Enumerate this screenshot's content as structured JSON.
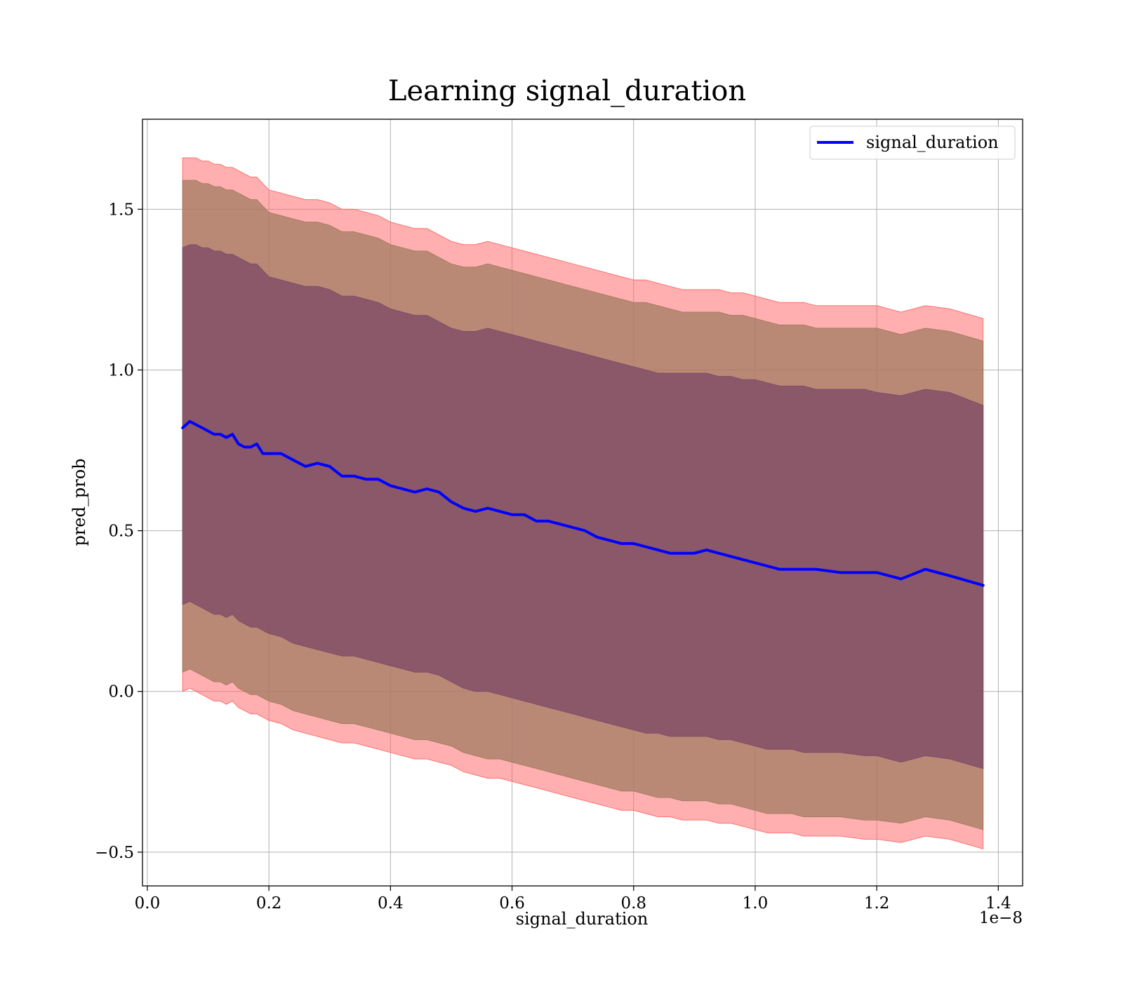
{
  "chart_data": {
    "type": "line",
    "title": "Learning signal_duration",
    "xlabel": "signal_duration",
    "ylabel": "pred_prob",
    "x_offset_label": "1e−8",
    "xlim": [
      -0.008,
      1.44
    ],
    "ylim": [
      -0.605,
      1.78
    ],
    "x_ticks": [
      0.0,
      0.2,
      0.4,
      0.6,
      0.8,
      1.0,
      1.2,
      1.4
    ],
    "x_tick_labels": [
      "0.0",
      "0.2",
      "0.4",
      "0.6",
      "0.8",
      "1.0",
      "1.2",
      "1.4"
    ],
    "y_ticks": [
      -0.5,
      0.0,
      0.5,
      1.0,
      1.5
    ],
    "y_tick_labels": [
      "−0.5",
      "0.0",
      "0.5",
      "1.0",
      "1.5"
    ],
    "grid": true,
    "legend_position": "top-right",
    "series": [
      {
        "name": "signal_duration",
        "color": "#0000ff",
        "x": [
          0.058,
          0.07,
          0.08,
          0.09,
          0.1,
          0.11,
          0.12,
          0.13,
          0.14,
          0.15,
          0.16,
          0.17,
          0.18,
          0.19,
          0.2,
          0.22,
          0.24,
          0.26,
          0.28,
          0.3,
          0.32,
          0.34,
          0.36,
          0.38,
          0.4,
          0.42,
          0.44,
          0.46,
          0.48,
          0.5,
          0.52,
          0.54,
          0.56,
          0.58,
          0.6,
          0.62,
          0.64,
          0.66,
          0.68,
          0.7,
          0.72,
          0.74,
          0.76,
          0.78,
          0.8,
          0.82,
          0.84,
          0.86,
          0.88,
          0.9,
          0.92,
          0.94,
          0.96,
          0.98,
          1.0,
          1.02,
          1.04,
          1.06,
          1.08,
          1.1,
          1.14,
          1.18,
          1.2,
          1.24,
          1.28,
          1.32,
          1.375
        ],
        "values": [
          0.82,
          0.84,
          0.83,
          0.82,
          0.81,
          0.8,
          0.8,
          0.79,
          0.8,
          0.77,
          0.76,
          0.76,
          0.77,
          0.74,
          0.74,
          0.74,
          0.72,
          0.7,
          0.71,
          0.7,
          0.67,
          0.67,
          0.66,
          0.66,
          0.64,
          0.63,
          0.62,
          0.63,
          0.62,
          0.59,
          0.57,
          0.56,
          0.57,
          0.56,
          0.55,
          0.55,
          0.53,
          0.53,
          0.52,
          0.51,
          0.5,
          0.48,
          0.47,
          0.46,
          0.46,
          0.45,
          0.44,
          0.43,
          0.43,
          0.43,
          0.44,
          0.43,
          0.42,
          0.41,
          0.4,
          0.39,
          0.38,
          0.38,
          0.38,
          0.38,
          0.37,
          0.37,
          0.37,
          0.35,
          0.38,
          0.36,
          0.33
        ]
      }
    ],
    "bands": [
      {
        "color": "#ff6666",
        "opacity": 0.52,
        "upper": [
          1.66,
          1.66,
          1.66,
          1.65,
          1.65,
          1.64,
          1.64,
          1.63,
          1.63,
          1.62,
          1.61,
          1.6,
          1.6,
          1.58,
          1.56,
          1.55,
          1.54,
          1.53,
          1.53,
          1.52,
          1.5,
          1.5,
          1.49,
          1.48,
          1.46,
          1.45,
          1.44,
          1.44,
          1.42,
          1.4,
          1.39,
          1.39,
          1.4,
          1.39,
          1.38,
          1.37,
          1.36,
          1.35,
          1.34,
          1.33,
          1.32,
          1.31,
          1.3,
          1.29,
          1.28,
          1.28,
          1.27,
          1.26,
          1.25,
          1.25,
          1.25,
          1.25,
          1.24,
          1.24,
          1.23,
          1.22,
          1.21,
          1.21,
          1.21,
          1.2,
          1.2,
          1.2,
          1.2,
          1.18,
          1.2,
          1.19,
          1.16
        ],
        "lower": [
          0.0,
          0.01,
          0.0,
          -0.01,
          -0.02,
          -0.03,
          -0.03,
          -0.04,
          -0.03,
          -0.05,
          -0.06,
          -0.07,
          -0.07,
          -0.08,
          -0.09,
          -0.1,
          -0.12,
          -0.13,
          -0.14,
          -0.15,
          -0.16,
          -0.16,
          -0.17,
          -0.18,
          -0.19,
          -0.2,
          -0.21,
          -0.21,
          -0.22,
          -0.23,
          -0.25,
          -0.26,
          -0.27,
          -0.27,
          -0.28,
          -0.29,
          -0.3,
          -0.31,
          -0.32,
          -0.33,
          -0.34,
          -0.35,
          -0.36,
          -0.37,
          -0.37,
          -0.38,
          -0.39,
          -0.39,
          -0.4,
          -0.4,
          -0.4,
          -0.41,
          -0.41,
          -0.42,
          -0.43,
          -0.44,
          -0.44,
          -0.44,
          -0.45,
          -0.45,
          -0.45,
          -0.46,
          -0.46,
          -0.47,
          -0.45,
          -0.46,
          -0.49
        ]
      },
      {
        "color": "#a07a60",
        "opacity": 0.72,
        "upper": [
          1.59,
          1.59,
          1.59,
          1.58,
          1.58,
          1.57,
          1.57,
          1.56,
          1.56,
          1.55,
          1.54,
          1.53,
          1.53,
          1.51,
          1.49,
          1.48,
          1.47,
          1.46,
          1.46,
          1.45,
          1.43,
          1.43,
          1.42,
          1.41,
          1.39,
          1.38,
          1.37,
          1.37,
          1.35,
          1.33,
          1.32,
          1.32,
          1.33,
          1.32,
          1.31,
          1.3,
          1.29,
          1.28,
          1.27,
          1.26,
          1.25,
          1.24,
          1.23,
          1.22,
          1.21,
          1.21,
          1.2,
          1.19,
          1.18,
          1.18,
          1.18,
          1.18,
          1.17,
          1.17,
          1.16,
          1.15,
          1.14,
          1.14,
          1.14,
          1.13,
          1.13,
          1.13,
          1.13,
          1.11,
          1.13,
          1.12,
          1.09
        ],
        "lower": [
          0.06,
          0.07,
          0.06,
          0.05,
          0.04,
          0.03,
          0.03,
          0.02,
          0.03,
          0.01,
          0.0,
          -0.01,
          -0.01,
          -0.02,
          -0.03,
          -0.04,
          -0.06,
          -0.07,
          -0.08,
          -0.09,
          -0.1,
          -0.1,
          -0.11,
          -0.12,
          -0.13,
          -0.14,
          -0.15,
          -0.15,
          -0.16,
          -0.17,
          -0.19,
          -0.2,
          -0.21,
          -0.21,
          -0.22,
          -0.23,
          -0.24,
          -0.25,
          -0.26,
          -0.27,
          -0.28,
          -0.29,
          -0.3,
          -0.31,
          -0.31,
          -0.32,
          -0.33,
          -0.33,
          -0.34,
          -0.34,
          -0.34,
          -0.35,
          -0.35,
          -0.36,
          -0.37,
          -0.38,
          -0.38,
          -0.38,
          -0.39,
          -0.39,
          -0.39,
          -0.4,
          -0.4,
          -0.41,
          -0.39,
          -0.4,
          -0.43
        ]
      },
      {
        "color": "#7d4a66",
        "opacity": 0.78,
        "upper": [
          1.38,
          1.39,
          1.39,
          1.38,
          1.38,
          1.37,
          1.37,
          1.36,
          1.36,
          1.35,
          1.34,
          1.33,
          1.33,
          1.31,
          1.29,
          1.28,
          1.27,
          1.26,
          1.26,
          1.25,
          1.23,
          1.23,
          1.22,
          1.21,
          1.19,
          1.18,
          1.17,
          1.17,
          1.15,
          1.13,
          1.12,
          1.12,
          1.13,
          1.12,
          1.11,
          1.1,
          1.09,
          1.08,
          1.07,
          1.06,
          1.05,
          1.04,
          1.03,
          1.02,
          1.01,
          1.0,
          0.99,
          0.99,
          0.99,
          0.99,
          0.99,
          0.98,
          0.98,
          0.97,
          0.97,
          0.96,
          0.95,
          0.95,
          0.95,
          0.94,
          0.94,
          0.94,
          0.93,
          0.92,
          0.94,
          0.93,
          0.89
        ],
        "lower": [
          0.27,
          0.28,
          0.27,
          0.26,
          0.25,
          0.24,
          0.24,
          0.23,
          0.24,
          0.22,
          0.21,
          0.2,
          0.2,
          0.19,
          0.18,
          0.17,
          0.15,
          0.14,
          0.13,
          0.12,
          0.11,
          0.11,
          0.1,
          0.09,
          0.08,
          0.07,
          0.06,
          0.06,
          0.05,
          0.03,
          0.01,
          0.0,
          0.0,
          -0.01,
          -0.02,
          -0.03,
          -0.04,
          -0.05,
          -0.06,
          -0.07,
          -0.08,
          -0.09,
          -0.1,
          -0.11,
          -0.12,
          -0.13,
          -0.13,
          -0.14,
          -0.14,
          -0.14,
          -0.14,
          -0.15,
          -0.15,
          -0.16,
          -0.17,
          -0.18,
          -0.18,
          -0.18,
          -0.19,
          -0.19,
          -0.19,
          -0.2,
          -0.2,
          -0.22,
          -0.2,
          -0.21,
          -0.24
        ]
      }
    ]
  }
}
